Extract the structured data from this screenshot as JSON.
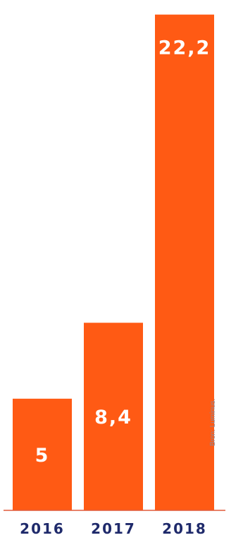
{
  "chart_data": {
    "type": "bar",
    "categories": [
      "2016",
      "2017",
      "2018"
    ],
    "values": [
      5,
      8.4,
      22.2
    ],
    "value_labels": [
      "5",
      "8,4",
      "22,2"
    ],
    "title": "",
    "xlabel": "",
    "ylabel": "",
    "ylim": [
      0,
      22.6
    ],
    "grid": false,
    "legend": "none",
    "colors": {
      "bar": "#FF5A14",
      "value_label": "#FFFFFF",
      "category_label": "#1F2A6B",
      "baseline": "#E05A3A",
      "source_text": "#8A8A9A"
    }
  },
  "source": "Bron: Luminus."
}
